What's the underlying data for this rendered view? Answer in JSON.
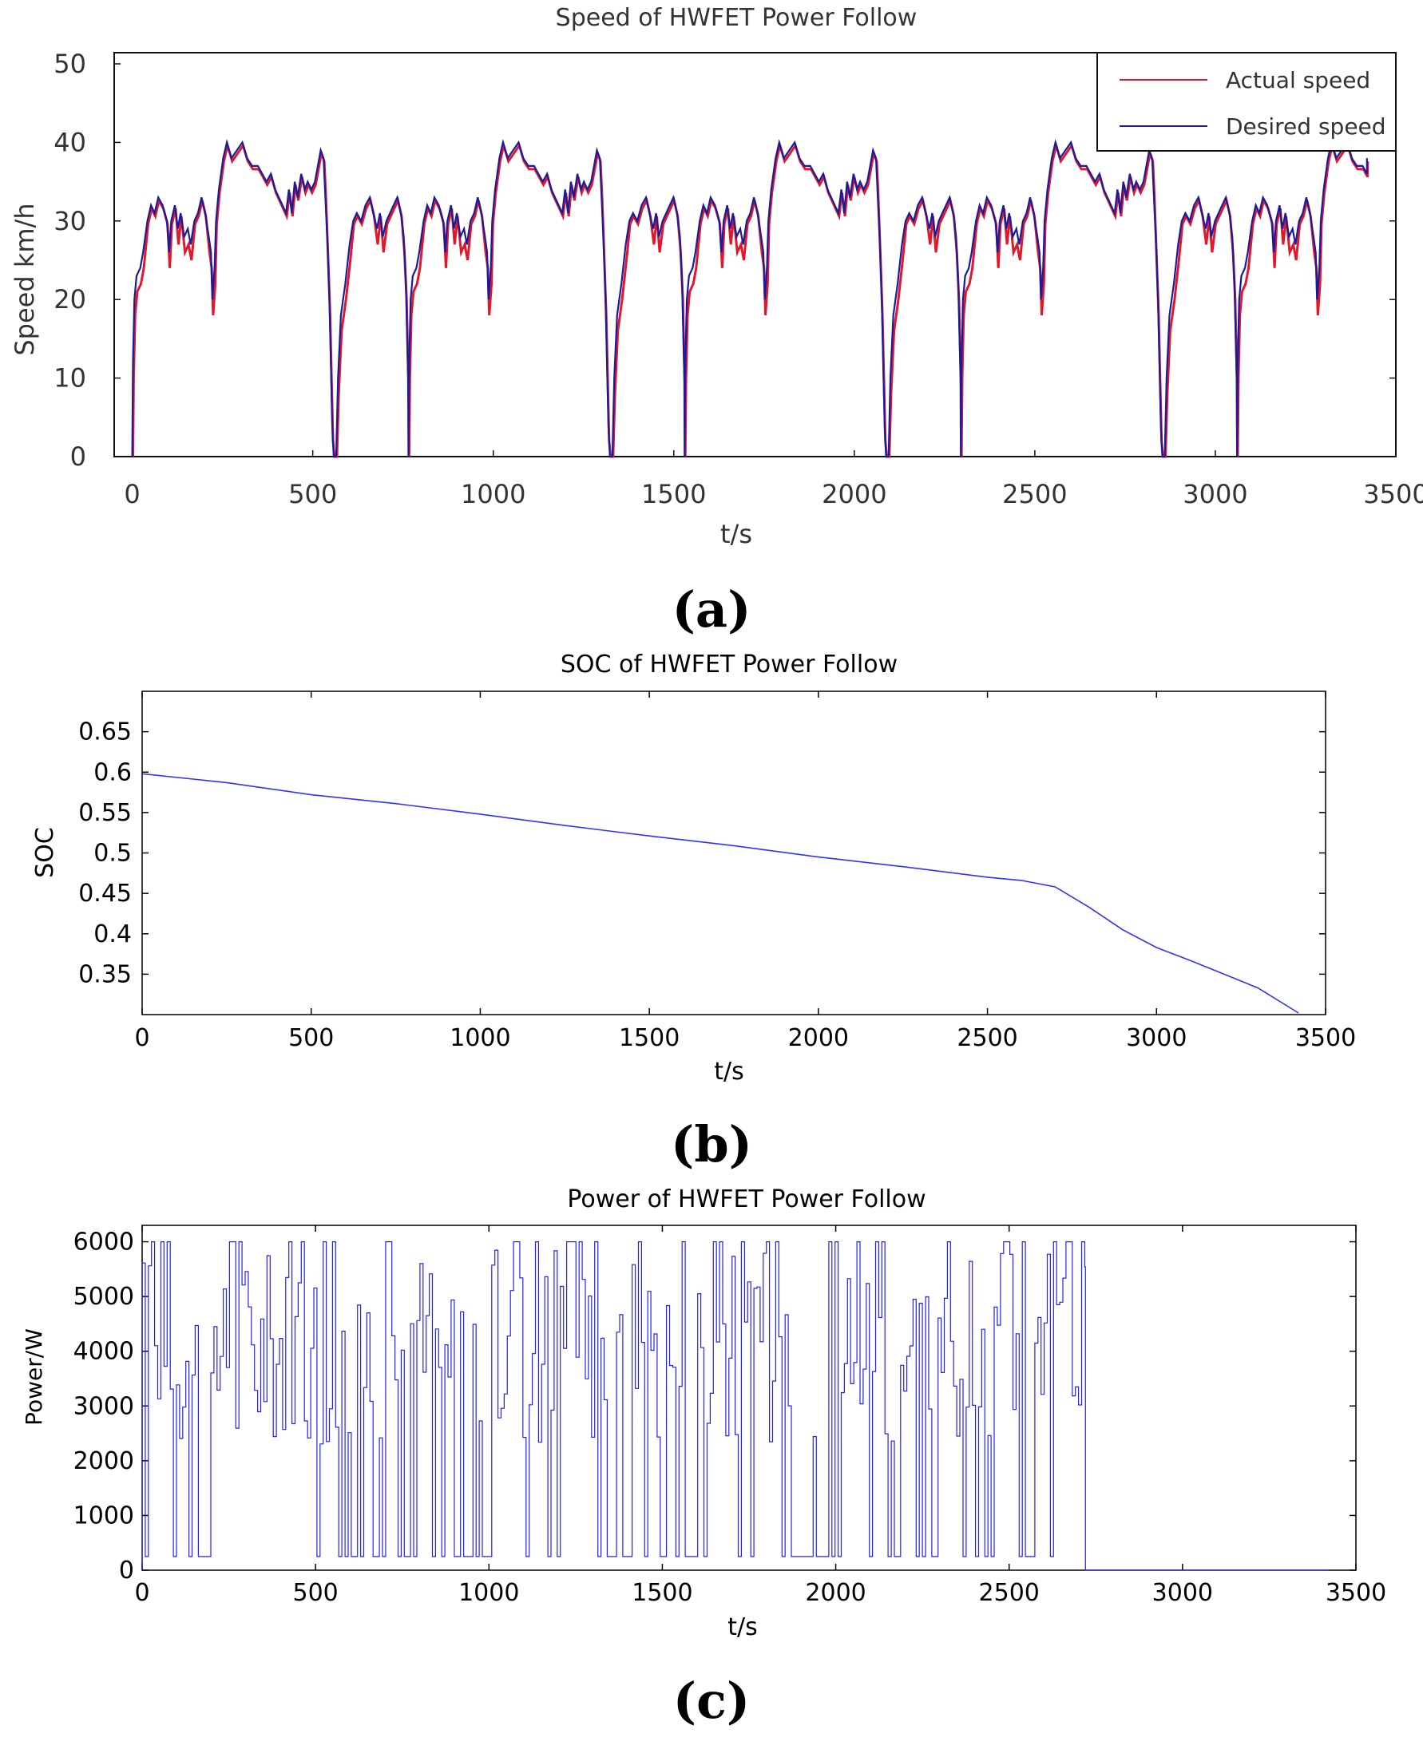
{
  "chart_data": [
    {
      "panel_label": "(a)",
      "type": "line",
      "title": "Speed of HWFET Power Follow",
      "xlabel": "t/s",
      "ylabel": "Speed  km/h",
      "xlim": [
        -50,
        3500
      ],
      "ylim": [
        0,
        50
      ],
      "xticks": [
        0,
        500,
        1000,
        1500,
        2000,
        2500,
        3000,
        3500
      ],
      "yticks": [
        0,
        10,
        20,
        30,
        40,
        50
      ],
      "legend": {
        "position": "top-right",
        "entries": [
          "Actual speed",
          "Desired speed"
        ]
      },
      "colors": {
        "actual": "#e0192a",
        "desired": "#1a1a9e"
      },
      "series": [
        {
          "name": "Actual speed"
        },
        {
          "name": "Desired speed",
          "cycle_period": 765,
          "cycle_points": [
            [
              0,
              0
            ],
            [
              2,
              12
            ],
            [
              6,
              20
            ],
            [
              12,
              23
            ],
            [
              22,
              24
            ],
            [
              30,
              26
            ],
            [
              42,
              30
            ],
            [
              52,
              32
            ],
            [
              62,
              31
            ],
            [
              72,
              33
            ],
            [
              84,
              32
            ],
            [
              96,
              30
            ],
            [
              102,
              26
            ],
            [
              108,
              30
            ],
            [
              118,
              32
            ],
            [
              126,
              29
            ],
            [
              134,
              31
            ],
            [
              144,
              28
            ],
            [
              154,
              29
            ],
            [
              162,
              27
            ],
            [
              172,
              30
            ],
            [
              182,
              31
            ],
            [
              192,
              33
            ],
            [
              202,
              31
            ],
            [
              212,
              28
            ],
            [
              218,
              26
            ],
            [
              222,
              20
            ],
            [
              228,
              24
            ],
            [
              232,
              30
            ],
            [
              240,
              34
            ],
            [
              252,
              38
            ],
            [
              262,
              40
            ],
            [
              275,
              38
            ],
            [
              290,
              39
            ],
            [
              305,
              40
            ],
            [
              318,
              38
            ],
            [
              332,
              37
            ],
            [
              348,
              37
            ],
            [
              360,
              36
            ],
            [
              372,
              35
            ],
            [
              384,
              36
            ],
            [
              396,
              34
            ],
            [
              406,
              33
            ],
            [
              416,
              32
            ],
            [
              426,
              31
            ],
            [
              434,
              34
            ],
            [
              442,
              31
            ],
            [
              450,
              35
            ],
            [
              458,
              33
            ],
            [
              468,
              36
            ],
            [
              478,
              34
            ],
            [
              486,
              35
            ],
            [
              496,
              34
            ],
            [
              506,
              35
            ],
            [
              514,
              37
            ],
            [
              522,
              39
            ],
            [
              530,
              38
            ],
            [
              534,
              34
            ],
            [
              540,
              28
            ],
            [
              546,
              20
            ],
            [
              550,
              12
            ],
            [
              554,
              4
            ],
            [
              558,
              0
            ],
            [
              565,
              0
            ],
            [
              570,
              10
            ],
            [
              578,
              18
            ],
            [
              590,
              22
            ],
            [
              602,
              27
            ],
            [
              612,
              30
            ],
            [
              622,
              31
            ],
            [
              634,
              30
            ],
            [
              646,
              32
            ],
            [
              658,
              33
            ],
            [
              668,
              31
            ],
            [
              678,
              29
            ],
            [
              686,
              31
            ],
            [
              694,
              28
            ],
            [
              704,
              30
            ],
            [
              714,
              31
            ],
            [
              724,
              32
            ],
            [
              734,
              33
            ],
            [
              744,
              31
            ],
            [
              752,
              28
            ],
            [
              758,
              22
            ],
            [
              764,
              10
            ],
            [
              765,
              0
            ]
          ],
          "cycles": 5,
          "t_end": 3420,
          "t_end_value": 38
        }
      ]
    },
    {
      "panel_label": "(b)",
      "type": "line",
      "title": "SOC of HWFET Power Follow",
      "xlabel": "t/s",
      "ylabel": "SOC",
      "xlim": [
        0,
        3500
      ],
      "ylim": [
        0.3,
        0.7
      ],
      "xticks": [
        0,
        500,
        1000,
        1500,
        2000,
        2500,
        3000,
        3500
      ],
      "yticks": [
        0.35,
        0.4,
        0.45,
        0.5,
        0.55,
        0.6,
        0.65
      ],
      "ytick_labels": [
        "0.35",
        "0.4",
        "0.45",
        "0.5",
        "0.55",
        "0.6",
        "0.65"
      ],
      "color": "#3030ff",
      "series": [
        {
          "name": "SOC",
          "x": [
            0,
            250,
            500,
            750,
            1000,
            1250,
            1500,
            1750,
            2000,
            2250,
            2500,
            2600,
            2700,
            2800,
            2900,
            3000,
            3100,
            3200,
            3300,
            3420
          ],
          "y": [
            0.598,
            0.587,
            0.572,
            0.561,
            0.548,
            0.534,
            0.521,
            0.509,
            0.495,
            0.483,
            0.47,
            0.466,
            0.458,
            0.433,
            0.405,
            0.383,
            0.367,
            0.35,
            0.333,
            0.302
          ]
        }
      ]
    },
    {
      "panel_label": "(c)",
      "type": "line",
      "title": "Power of HWFET Power Follow",
      "xlabel": "t/s",
      "ylabel": "Power/W",
      "xlim": [
        0,
        3500
      ],
      "ylim": [
        0,
        6300
      ],
      "xticks": [
        0,
        500,
        1000,
        1500,
        2000,
        2500,
        3000,
        3500
      ],
      "yticks": [
        0,
        1000,
        2000,
        3000,
        4000,
        5000,
        6000
      ],
      "color": "#2222ee",
      "series": [
        {
          "name": "Power",
          "step_dt": 9,
          "t_active_end": 2720,
          "t_end": 3420,
          "min": 250,
          "max": 6000,
          "off_value": 0,
          "low_zones": [
            [
              120,
              200
            ],
            [
              600,
              700
            ],
            [
              730,
              800
            ],
            [
              820,
              1000
            ],
            [
              1330,
              1400
            ],
            [
              1490,
              1540
            ],
            [
              1560,
              1600
            ],
            [
              1880,
              1950
            ],
            [
              2150,
              2200
            ],
            [
              2230,
              2300
            ],
            [
              2380,
              2460
            ],
            [
              2540,
              2600
            ]
          ]
        }
      ]
    }
  ]
}
